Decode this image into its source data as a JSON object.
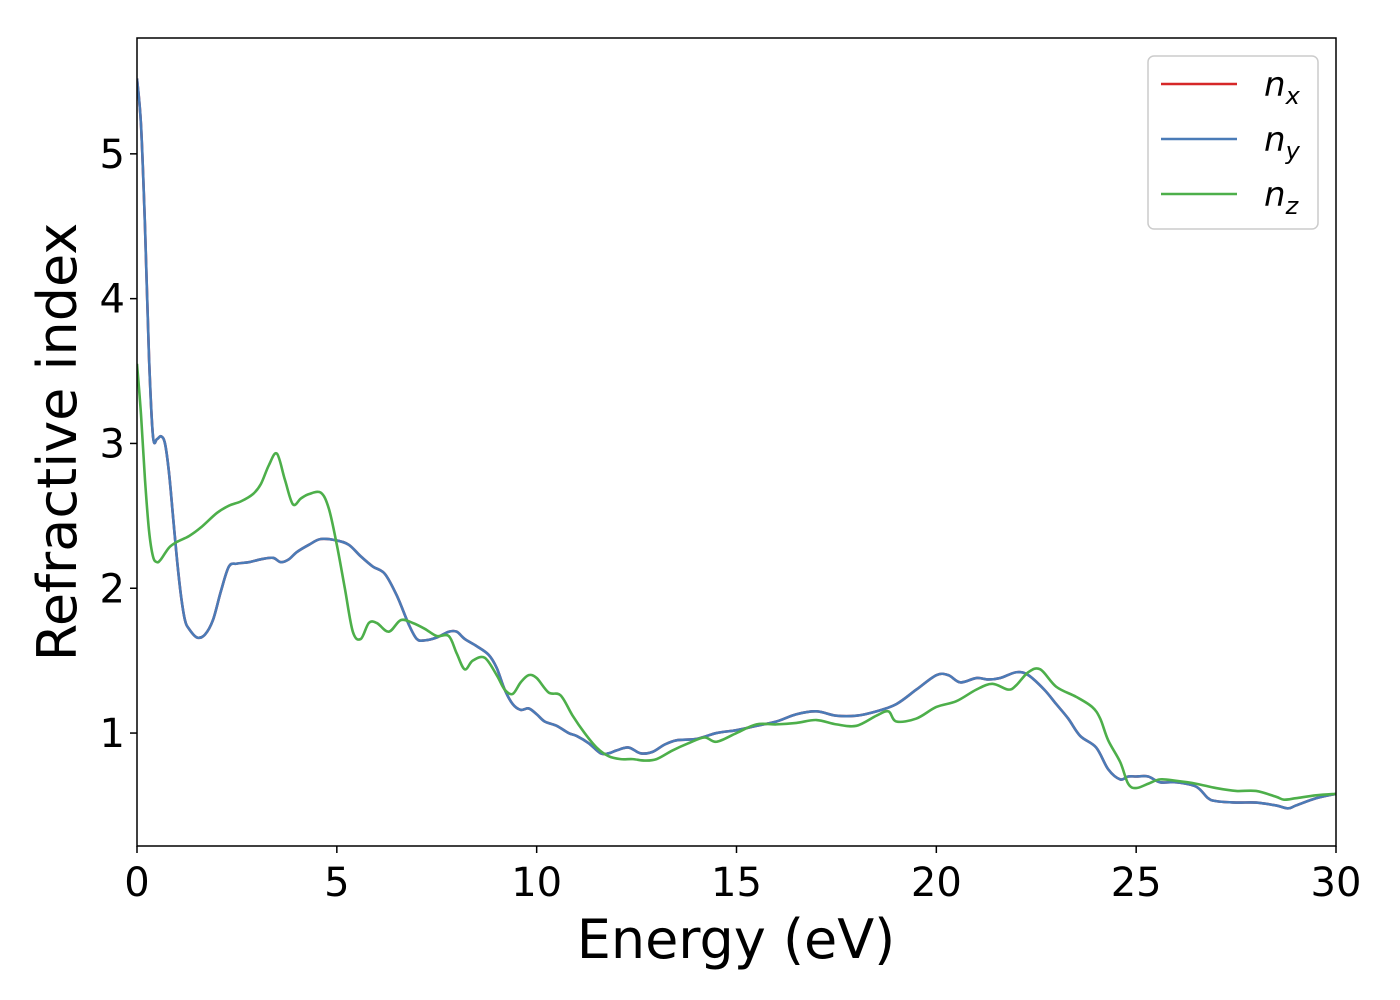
{
  "chart_data": {
    "type": "line",
    "title": "",
    "xlabel": "Energy (eV)",
    "ylabel": "Refractive index",
    "xlim": [
      0,
      30
    ],
    "ylim": [
      0.22,
      5.8
    ],
    "xticks": [
      0,
      5,
      10,
      15,
      20,
      25,
      30
    ],
    "yticks": [
      1,
      2,
      3,
      4,
      5
    ],
    "grid": false,
    "legend_position": "top-right",
    "series": [
      {
        "name": "n_x",
        "label_base": "n",
        "label_sub": "x",
        "color": "#d62728",
        "x": [
          0,
          0.1,
          0.2,
          0.3,
          0.4,
          0.5,
          0.6,
          0.7,
          0.8,
          0.9,
          1.0,
          1.1,
          1.2,
          1.3,
          1.5,
          1.7,
          1.9,
          2.1,
          2.3,
          2.5,
          2.8,
          3.1,
          3.4,
          3.6,
          3.8,
          4.0,
          4.3,
          4.6,
          5.0,
          5.3,
          5.6,
          5.9,
          6.2,
          6.5,
          6.8,
          7.0,
          7.2,
          7.5,
          7.8,
          8.0,
          8.2,
          8.5,
          8.8,
          9.0,
          9.2,
          9.4,
          9.6,
          9.8,
          10.0,
          10.2,
          10.5,
          10.8,
          11.0,
          11.3,
          11.6,
          11.8,
          12.0,
          12.3,
          12.6,
          12.9,
          13.2,
          13.5,
          14.0,
          14.5,
          15.0,
          15.5,
          16.0,
          16.5,
          17.0,
          17.5,
          18.0,
          18.5,
          19.0,
          19.5,
          20.0,
          20.3,
          20.6,
          21.0,
          21.3,
          21.6,
          22.0,
          22.3,
          22.7,
          23.0,
          23.3,
          23.6,
          24.0,
          24.3,
          24.6,
          24.8,
          25.0,
          25.3,
          25.6,
          26.0,
          26.5,
          26.8,
          27.0,
          27.5,
          28.0,
          28.5,
          28.8,
          29.0,
          29.5,
          30.0
        ],
        "y": [
          5.52,
          5.2,
          4.5,
          3.6,
          3.05,
          3.03,
          3.05,
          3.0,
          2.8,
          2.5,
          2.2,
          1.95,
          1.78,
          1.72,
          1.66,
          1.68,
          1.78,
          1.98,
          2.15,
          2.17,
          2.18,
          2.2,
          2.21,
          2.18,
          2.2,
          2.25,
          2.3,
          2.34,
          2.33,
          2.3,
          2.22,
          2.15,
          2.1,
          1.95,
          1.75,
          1.65,
          1.64,
          1.66,
          1.7,
          1.7,
          1.65,
          1.6,
          1.54,
          1.45,
          1.3,
          1.2,
          1.16,
          1.17,
          1.13,
          1.08,
          1.05,
          1.0,
          0.98,
          0.93,
          0.86,
          0.86,
          0.88,
          0.9,
          0.86,
          0.87,
          0.92,
          0.95,
          0.96,
          1.0,
          1.02,
          1.05,
          1.08,
          1.13,
          1.15,
          1.12,
          1.12,
          1.15,
          1.2,
          1.3,
          1.4,
          1.4,
          1.35,
          1.38,
          1.37,
          1.38,
          1.42,
          1.4,
          1.3,
          1.2,
          1.1,
          0.98,
          0.9,
          0.75,
          0.68,
          0.7,
          0.7,
          0.7,
          0.66,
          0.66,
          0.63,
          0.55,
          0.53,
          0.52,
          0.52,
          0.5,
          0.48,
          0.5,
          0.55,
          0.58
        ]
      },
      {
        "name": "n_y",
        "label_base": "n",
        "label_sub": "y",
        "color": "#4a7bb7",
        "x": [
          0,
          0.1,
          0.2,
          0.3,
          0.4,
          0.5,
          0.6,
          0.7,
          0.8,
          0.9,
          1.0,
          1.1,
          1.2,
          1.3,
          1.5,
          1.7,
          1.9,
          2.1,
          2.3,
          2.5,
          2.8,
          3.1,
          3.4,
          3.6,
          3.8,
          4.0,
          4.3,
          4.6,
          5.0,
          5.3,
          5.6,
          5.9,
          6.2,
          6.5,
          6.8,
          7.0,
          7.2,
          7.5,
          7.8,
          8.0,
          8.2,
          8.5,
          8.8,
          9.0,
          9.2,
          9.4,
          9.6,
          9.8,
          10.0,
          10.2,
          10.5,
          10.8,
          11.0,
          11.3,
          11.6,
          11.8,
          12.0,
          12.3,
          12.6,
          12.9,
          13.2,
          13.5,
          14.0,
          14.5,
          15.0,
          15.5,
          16.0,
          16.5,
          17.0,
          17.5,
          18.0,
          18.5,
          19.0,
          19.5,
          20.0,
          20.3,
          20.6,
          21.0,
          21.3,
          21.6,
          22.0,
          22.3,
          22.7,
          23.0,
          23.3,
          23.6,
          24.0,
          24.3,
          24.6,
          24.8,
          25.0,
          25.3,
          25.6,
          26.0,
          26.5,
          26.8,
          27.0,
          27.5,
          28.0,
          28.5,
          28.8,
          29.0,
          29.5,
          30.0
        ],
        "y": [
          5.52,
          5.2,
          4.5,
          3.6,
          3.05,
          3.03,
          3.05,
          3.0,
          2.8,
          2.5,
          2.2,
          1.95,
          1.78,
          1.72,
          1.66,
          1.68,
          1.78,
          1.98,
          2.15,
          2.17,
          2.18,
          2.2,
          2.21,
          2.18,
          2.2,
          2.25,
          2.3,
          2.34,
          2.33,
          2.3,
          2.22,
          2.15,
          2.1,
          1.95,
          1.75,
          1.65,
          1.64,
          1.66,
          1.7,
          1.7,
          1.65,
          1.6,
          1.54,
          1.45,
          1.3,
          1.2,
          1.16,
          1.17,
          1.13,
          1.08,
          1.05,
          1.0,
          0.98,
          0.93,
          0.86,
          0.86,
          0.88,
          0.9,
          0.86,
          0.87,
          0.92,
          0.95,
          0.96,
          1.0,
          1.02,
          1.05,
          1.08,
          1.13,
          1.15,
          1.12,
          1.12,
          1.15,
          1.2,
          1.3,
          1.4,
          1.4,
          1.35,
          1.38,
          1.37,
          1.38,
          1.42,
          1.4,
          1.3,
          1.2,
          1.1,
          0.98,
          0.9,
          0.75,
          0.68,
          0.7,
          0.7,
          0.7,
          0.66,
          0.66,
          0.63,
          0.55,
          0.53,
          0.52,
          0.52,
          0.5,
          0.48,
          0.5,
          0.55,
          0.58
        ]
      },
      {
        "name": "n_z",
        "label_base": "n",
        "label_sub": "z",
        "color": "#4daf4a",
        "x": [
          0,
          0.1,
          0.2,
          0.3,
          0.4,
          0.5,
          0.6,
          0.8,
          1.0,
          1.3,
          1.6,
          2.0,
          2.3,
          2.6,
          2.9,
          3.1,
          3.3,
          3.5,
          3.7,
          3.9,
          4.1,
          4.3,
          4.6,
          4.8,
          5.0,
          5.2,
          5.4,
          5.6,
          5.8,
          6.0,
          6.3,
          6.6,
          6.9,
          7.2,
          7.5,
          7.8,
          8.0,
          8.2,
          8.4,
          8.7,
          9.0,
          9.2,
          9.4,
          9.6,
          9.8,
          10.0,
          10.3,
          10.6,
          10.9,
          11.2,
          11.5,
          11.8,
          12.1,
          12.4,
          12.7,
          13.0,
          13.4,
          13.8,
          14.2,
          14.5,
          15.0,
          15.5,
          16.0,
          16.5,
          17.0,
          17.5,
          18.0,
          18.5,
          18.8,
          19.0,
          19.5,
          20.0,
          20.5,
          21.0,
          21.4,
          21.8,
          22.0,
          22.3,
          22.6,
          23.0,
          23.5,
          23.9,
          24.1,
          24.3,
          24.6,
          24.8,
          25.0,
          25.3,
          25.6,
          26.0,
          26.5,
          27.0,
          27.5,
          28.0,
          28.5,
          28.7,
          29.0,
          29.5,
          30.0
        ],
        "y": [
          3.55,
          3.2,
          2.75,
          2.4,
          2.22,
          2.18,
          2.2,
          2.28,
          2.32,
          2.36,
          2.42,
          2.52,
          2.57,
          2.6,
          2.65,
          2.72,
          2.85,
          2.93,
          2.75,
          2.58,
          2.62,
          2.65,
          2.66,
          2.55,
          2.3,
          2.0,
          1.7,
          1.65,
          1.76,
          1.76,
          1.7,
          1.78,
          1.76,
          1.72,
          1.67,
          1.67,
          1.55,
          1.44,
          1.5,
          1.52,
          1.4,
          1.3,
          1.27,
          1.35,
          1.4,
          1.38,
          1.28,
          1.26,
          1.12,
          1.0,
          0.9,
          0.84,
          0.82,
          0.82,
          0.81,
          0.82,
          0.88,
          0.93,
          0.97,
          0.94,
          1.0,
          1.06,
          1.06,
          1.07,
          1.09,
          1.06,
          1.05,
          1.12,
          1.15,
          1.08,
          1.1,
          1.18,
          1.22,
          1.3,
          1.34,
          1.3,
          1.33,
          1.42,
          1.44,
          1.32,
          1.25,
          1.18,
          1.1,
          0.95,
          0.8,
          0.65,
          0.62,
          0.65,
          0.68,
          0.67,
          0.65,
          0.62,
          0.6,
          0.6,
          0.56,
          0.54,
          0.55,
          0.57,
          0.58
        ]
      }
    ]
  }
}
